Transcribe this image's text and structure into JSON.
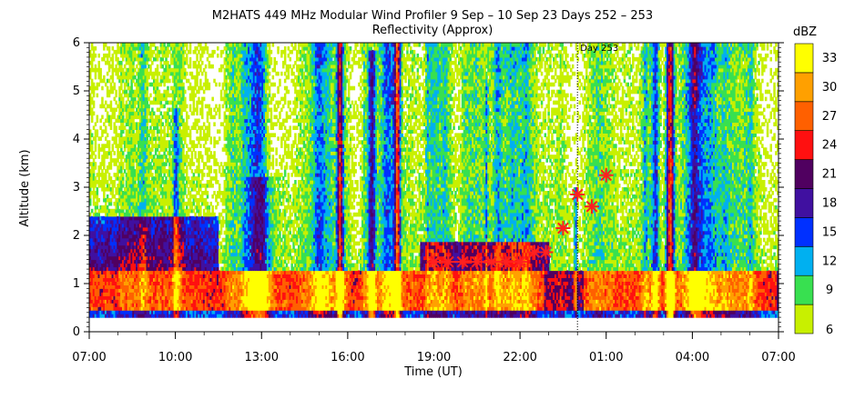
{
  "chart_data": {
    "type": "heatmap",
    "title": "M2HATS 449 MHz Modular Wind Profiler    9 Sep – 10 Sep 23 Days 252 – 253",
    "subtitle": "Reflectivity (Approx)",
    "xlabel": "Time (UT)",
    "ylabel": "Altitude (km)",
    "x_ticks": [
      "07:00",
      "10:00",
      "13:00",
      "16:00",
      "19:00",
      "22:00",
      "01:00",
      "04:00",
      "07:00"
    ],
    "y_ticks": [
      "0",
      "1",
      "2",
      "3",
      "4",
      "5",
      "6"
    ],
    "ylim": [
      0,
      6
    ],
    "x_range_hours": [
      0,
      24
    ],
    "day_marker": {
      "label": "Day 253",
      "hours_from_start": 17
    },
    "colorbar": {
      "unit": "dBZ",
      "levels": [
        6,
        9,
        12,
        15,
        18,
        21,
        24,
        27,
        30,
        33
      ],
      "colors": [
        "#c8f000",
        "#38e050",
        "#00b0f0",
        "#0030ff",
        "#4010a0",
        "#500060",
        "#ff1010",
        "#ff6000",
        "#ffa000",
        "#ffff00"
      ]
    },
    "markers": {
      "symbol": "asterisk",
      "color": "#ff2020",
      "points": [
        {
          "x": 12.0,
          "y": 1.45
        },
        {
          "x": 12.5,
          "y": 1.45
        },
        {
          "x": 13.0,
          "y": 1.45
        },
        {
          "x": 13.5,
          "y": 1.45
        },
        {
          "x": 14.0,
          "y": 1.45
        },
        {
          "x": 14.5,
          "y": 1.45
        },
        {
          "x": 15.0,
          "y": 1.45
        },
        {
          "x": 15.5,
          "y": 1.65
        },
        {
          "x": 15.9,
          "y": 1.65
        },
        {
          "x": 16.5,
          "y": 2.15
        },
        {
          "x": 17.0,
          "y": 2.85
        },
        {
          "x": 17.5,
          "y": 2.6
        },
        {
          "x": 18.0,
          "y": 3.25
        }
      ]
    }
  }
}
